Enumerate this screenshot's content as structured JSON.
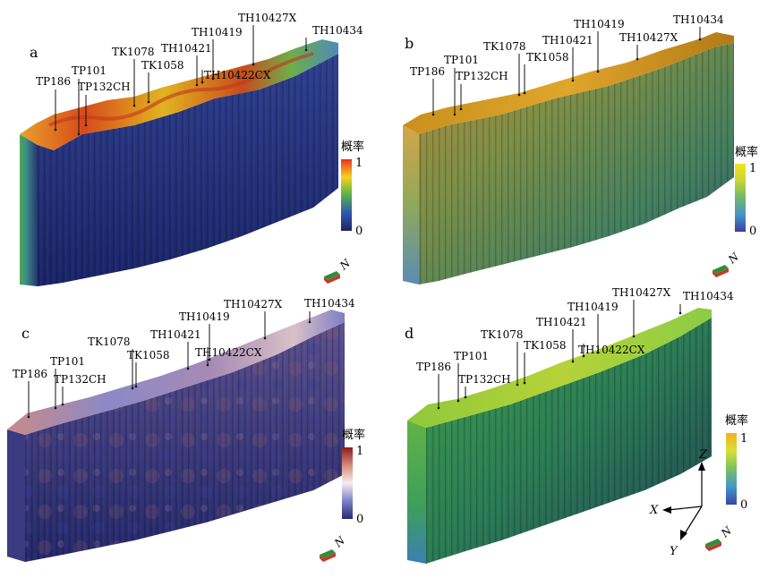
{
  "panels": [
    {
      "id": "a",
      "letter": "a",
      "legend_title": "概率",
      "legend_max": "1",
      "legend_min": "0",
      "legend_colors": [
        "#e8321e",
        "#f7d21d",
        "#55b34a",
        "#2f57b0",
        "#1d2460"
      ],
      "wells": [
        "TP186",
        "TP101",
        "TP132CH",
        "TK1078",
        "TK1058",
        "TH10421",
        "TH10419",
        "TH10427X",
        "TH10434",
        "TH10422CX"
      ],
      "north": "N"
    },
    {
      "id": "b",
      "letter": "b",
      "legend_title": "概率",
      "legend_max": "1",
      "legend_min": "0",
      "legend_colors": [
        "#f5e21d",
        "#c7d635",
        "#6fb86a",
        "#4694c7",
        "#3a3f9f"
      ],
      "wells": [
        "TP186",
        "TP101",
        "TP132CH",
        "TK1078",
        "TK1058",
        "TH10421",
        "TH10419",
        "TH10427X",
        "TH10434"
      ],
      "north": "N"
    },
    {
      "id": "c",
      "letter": "c",
      "legend_title": "概率",
      "legend_max": "1",
      "legend_min": "0",
      "legend_colors": [
        "#8a1c1c",
        "#d98a7c",
        "#f4eef0",
        "#7d80c7",
        "#262a74"
      ],
      "wells": [
        "TP186",
        "TP101",
        "TP132CH",
        "TK1078",
        "TK1058",
        "TH10421",
        "TH10419",
        "TH10427X",
        "TH10434",
        "TH10422CX"
      ],
      "north": "N"
    },
    {
      "id": "d",
      "letter": "d",
      "legend_title": "概率",
      "legend_max": "1",
      "legend_min": "0",
      "legend_colors": [
        "#f4b21c",
        "#d8e036",
        "#79c160",
        "#4596ca",
        "#3c45a6"
      ],
      "wells": [
        "TP186",
        "TP101",
        "TP132CH",
        "TK1078",
        "TK1058",
        "TH10421",
        "TH10419",
        "TH10427X",
        "TH10434",
        "TH10422CX"
      ],
      "north": "N",
      "axes": {
        "x": "X",
        "y": "Y",
        "z": "Z"
      }
    }
  ]
}
